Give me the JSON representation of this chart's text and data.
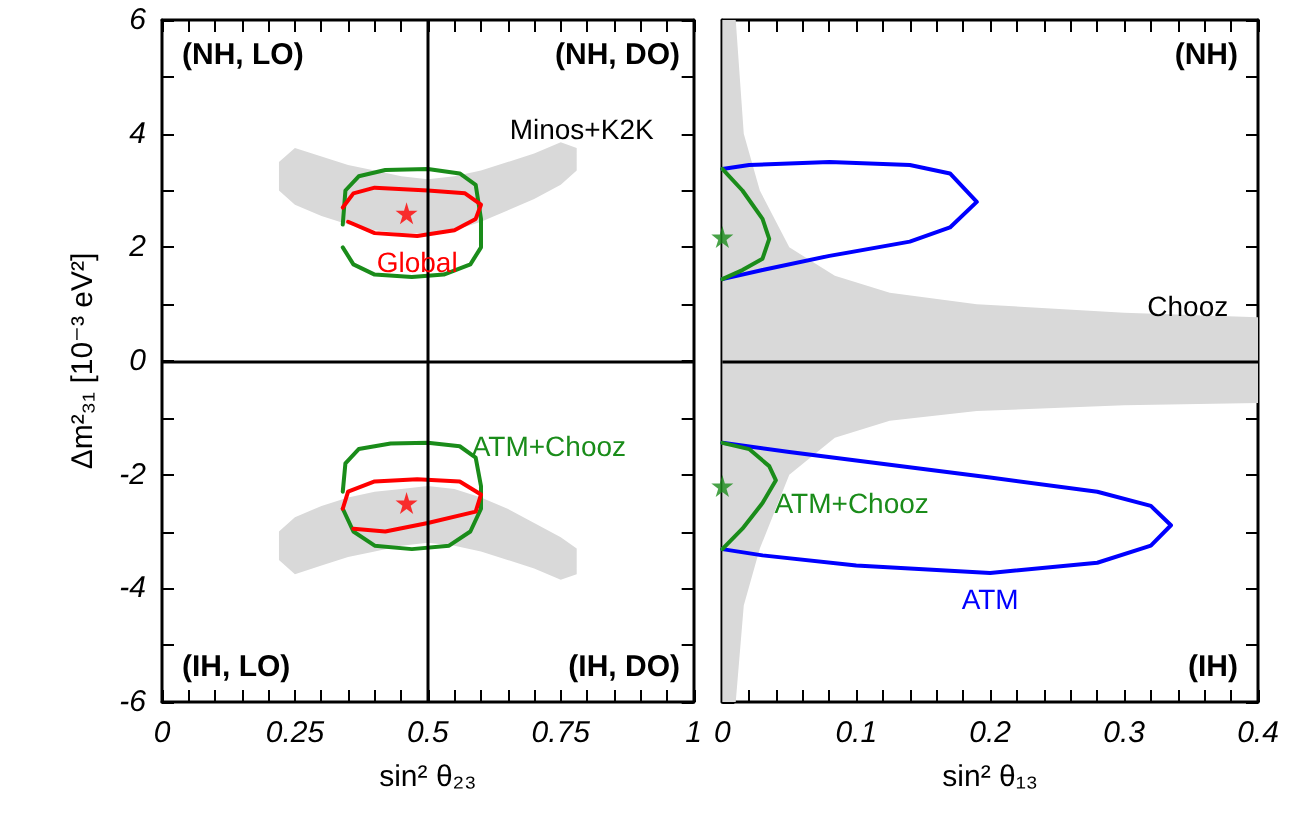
{
  "chart_data": [
    {
      "type": "line",
      "xlabel": "sin² θ₂₃",
      "ylabel": "Δm²₃₁ [10⁻³ eV²]",
      "xlim": [
        0,
        1
      ],
      "ylim": [
        -6,
        6
      ],
      "xticks": [
        0,
        {
          "value": 0.05,
          "label": null
        },
        {
          "value": 0.1,
          "label": null
        },
        {
          "value": 0.15,
          "label": null
        },
        {
          "value": 0.2,
          "label": null
        },
        0.25,
        {
          "value": 0.3,
          "label": null
        },
        {
          "value": 0.35,
          "label": null
        },
        {
          "value": 0.4,
          "label": null
        },
        {
          "value": 0.45,
          "label": null
        },
        0.5,
        {
          "value": 0.55,
          "label": null
        },
        {
          "value": 0.6,
          "label": null
        },
        {
          "value": 0.65,
          "label": null
        },
        {
          "value": 0.7,
          "label": null
        },
        0.75,
        {
          "value": 0.8,
          "label": null
        },
        {
          "value": 0.85,
          "label": null
        },
        {
          "value": 0.9,
          "label": null
        },
        {
          "value": 0.95,
          "label": null
        },
        1
      ],
      "yticks": [
        -6,
        {
          "value": -5,
          "label": null
        },
        -4,
        {
          "value": -3,
          "label": null
        },
        -2,
        {
          "value": -1,
          "label": null
        },
        0,
        {
          "value": 1,
          "label": null
        },
        2,
        {
          "value": 3,
          "label": null
        },
        4,
        {
          "value": 5,
          "label": null
        },
        6
      ],
      "grid": false,
      "legend": false,
      "marker": "none",
      "line_style": "solid",
      "annotations": [
        "(NH, LO)",
        "(NH, DO)",
        "(IH, LO)",
        "(IH, DO)",
        "Minos+K2K"
      ],
      "ref_lines": [
        {
          "axis": "x",
          "value": 0.5,
          "color": "#000000"
        },
        {
          "axis": "y",
          "value": 0,
          "color": "#000000"
        }
      ],
      "series": [
        {
          "type": "area",
          "color": "#d9d9d9",
          "x": [
            0.22,
            0.25,
            0.3,
            0.35,
            0.4,
            0.45,
            0.5,
            0.55,
            0.6,
            0.65,
            0.7,
            0.75,
            0.78
          ],
          "values": [
            null,
            null,
            null,
            null,
            null,
            null,
            null,
            null,
            null,
            null,
            null,
            null,
            null
          ],
          "lower": [
            3.0,
            2.75,
            2.55,
            2.4,
            2.3,
            2.25,
            2.25,
            2.3,
            2.45,
            2.65,
            2.85,
            3.1,
            3.35
          ],
          "upper": [
            3.5,
            3.75,
            3.6,
            3.45,
            3.35,
            3.25,
            3.2,
            3.25,
            3.35,
            3.5,
            3.65,
            3.85,
            3.75
          ]
        },
        {
          "type": "area",
          "color": "#d9d9d9",
          "x": [
            0.22,
            0.25,
            0.3,
            0.35,
            0.4,
            0.45,
            0.5,
            0.55,
            0.6,
            0.65,
            0.7,
            0.75,
            0.78
          ],
          "values": [
            null,
            null,
            null,
            null,
            null,
            null,
            null,
            null,
            null,
            null,
            null,
            null,
            null
          ],
          "lower": [
            -3.5,
            -3.75,
            -3.6,
            -3.45,
            -3.35,
            -3.25,
            -3.2,
            -3.25,
            -3.35,
            -3.5,
            -3.65,
            -3.85,
            -3.75
          ],
          "upper": [
            -3.0,
            -2.75,
            -2.55,
            -2.4,
            -2.3,
            -2.25,
            -2.2,
            -2.25,
            -2.4,
            -2.6,
            -2.85,
            -3.1,
            -3.3
          ]
        },
        {
          "color": "#1a8c1a",
          "x": [
            0.34,
            0.345,
            0.37,
            0.42,
            0.5,
            0.56,
            0.59,
            0.6,
            0.6,
            0.58,
            0.53,
            0.47,
            0.4,
            0.36,
            0.34
          ],
          "values": [
            2.4,
            3.0,
            3.25,
            3.36,
            3.38,
            3.3,
            3.1,
            2.5,
            2.0,
            1.7,
            1.52,
            1.48,
            1.52,
            1.7,
            2.0
          ]
        },
        {
          "name": "Global",
          "color": "#ff0000",
          "x": [
            0.34,
            0.36,
            0.4,
            0.5,
            0.57,
            0.6,
            0.59,
            0.55,
            0.48,
            0.4,
            0.35
          ],
          "values": [
            2.7,
            2.95,
            3.05,
            3.0,
            2.95,
            2.75,
            2.5,
            2.3,
            2.2,
            2.25,
            2.45
          ]
        },
        {
          "name": "ATM+Chooz",
          "color": "#1a8c1a",
          "x": [
            0.34,
            0.345,
            0.37,
            0.43,
            0.5,
            0.56,
            0.59,
            0.6,
            0.6,
            0.58,
            0.54,
            0.47,
            0.4,
            0.36,
            0.34
          ],
          "values": [
            -2.3,
            -1.8,
            -1.55,
            -1.45,
            -1.44,
            -1.5,
            -1.7,
            -2.2,
            -2.6,
            -3.0,
            -3.25,
            -3.31,
            -3.25,
            -3.0,
            -2.6
          ]
        },
        {
          "color": "#ff0000",
          "x": [
            0.34,
            0.35,
            0.4,
            0.48,
            0.56,
            0.6,
            0.59,
            0.5,
            0.42,
            0.36
          ],
          "values": [
            -2.6,
            -2.3,
            -2.12,
            -2.08,
            -2.12,
            -2.35,
            -2.65,
            -2.85,
            -3.0,
            -2.95
          ]
        },
        {
          "type": "scatter",
          "marker": "star",
          "color": "#ff0000",
          "x": [
            0.46,
            0.46
          ],
          "values": [
            2.6,
            -2.5
          ]
        }
      ]
    },
    {
      "type": "line",
      "xlabel": "sin² θ₁₃",
      "xlim": [
        0,
        0.4
      ],
      "ylim": [
        -6,
        6
      ],
      "tick_labels": "x",
      "xticks": [
        0,
        {
          "value": 0.02,
          "label": null
        },
        {
          "value": 0.04,
          "label": null
        },
        {
          "value": 0.06,
          "label": null
        },
        {
          "value": 0.08,
          "label": null
        },
        0.1,
        {
          "value": 0.12,
          "label": null
        },
        {
          "value": 0.14,
          "label": null
        },
        {
          "value": 0.16,
          "label": null
        },
        {
          "value": 0.18,
          "label": null
        },
        0.2,
        {
          "value": 0.22,
          "label": null
        },
        {
          "value": 0.24,
          "label": null
        },
        {
          "value": 0.26,
          "label": null
        },
        {
          "value": 0.28,
          "label": null
        },
        0.3,
        {
          "value": 0.32,
          "label": null
        },
        {
          "value": 0.34,
          "label": null
        },
        {
          "value": 0.36,
          "label": null
        },
        {
          "value": 0.38,
          "label": null
        },
        0.4
      ],
      "yticks": [
        -6,
        {
          "value": -5,
          "label": null
        },
        -4,
        {
          "value": -3,
          "label": null
        },
        -2,
        {
          "value": -1,
          "label": null
        },
        0,
        {
          "value": 1,
          "label": null
        },
        2,
        {
          "value": 3,
          "label": null
        },
        4,
        {
          "value": 5,
          "label": null
        },
        6
      ],
      "grid": false,
      "legend": false,
      "marker": "none",
      "line_style": "solid",
      "annotations": [
        "(NH)",
        "(IH)",
        "Chooz"
      ],
      "ref_lines": [
        {
          "axis": "y",
          "value": 0,
          "color": "#000000"
        }
      ],
      "series": [
        {
          "type": "area",
          "color": "#d9d9d9",
          "x": [
            0,
            0.01,
            0.016,
            0.028,
            0.05,
            0.084,
            0.125,
            0.19,
            0.3,
            0.4
          ],
          "values": [
            null,
            null,
            null,
            null,
            null,
            null,
            null,
            null,
            null,
            null
          ],
          "lower": [
            -6,
            -6,
            -4.3,
            -3.3,
            -2.0,
            -1.35,
            -1.05,
            -0.88,
            -0.78,
            -0.74
          ],
          "upper": [
            6,
            6,
            4,
            3,
            2,
            1.5,
            1.2,
            1.0,
            0.85,
            0.77
          ]
        },
        {
          "color": "#0000ff",
          "x": [
            0,
            0.02,
            0.08,
            0.14,
            0.17,
            0.19,
            0.17,
            0.14,
            0.08,
            0.03,
            0
          ],
          "values": [
            3.38,
            3.45,
            3.5,
            3.45,
            3.3,
            2.8,
            2.35,
            2.1,
            1.85,
            1.6,
            1.44
          ]
        },
        {
          "color": "#1a8c1a",
          "x": [
            0,
            0.015,
            0.03,
            0.035,
            0.03,
            0.015,
            0
          ],
          "values": [
            3.38,
            3.0,
            2.5,
            2.15,
            1.8,
            1.6,
            1.44
          ]
        },
        {
          "name": "ATM",
          "color": "#0000ff",
          "x": [
            0,
            0.05,
            0.1,
            0.2,
            0.28,
            0.32,
            0.335,
            0.32,
            0.28,
            0.2,
            0.1,
            0.03,
            0
          ],
          "values": [
            -1.44,
            -1.6,
            -1.75,
            -2.05,
            -2.3,
            -2.55,
            -2.89,
            -3.25,
            -3.55,
            -3.73,
            -3.6,
            -3.42,
            -3.31
          ]
        },
        {
          "name": "ATM+Chooz",
          "color": "#1a8c1a",
          "x": [
            0,
            0.02,
            0.035,
            0.04,
            0.03,
            0.015,
            0
          ],
          "values": [
            -1.44,
            -1.55,
            -1.85,
            -2.1,
            -2.5,
            -2.95,
            -3.31
          ]
        },
        {
          "type": "scatter",
          "marker": "star",
          "color": "#1a8c1a",
          "x": [
            0,
            0
          ],
          "values": [
            2.18,
            -2.2
          ]
        }
      ]
    }
  ]
}
